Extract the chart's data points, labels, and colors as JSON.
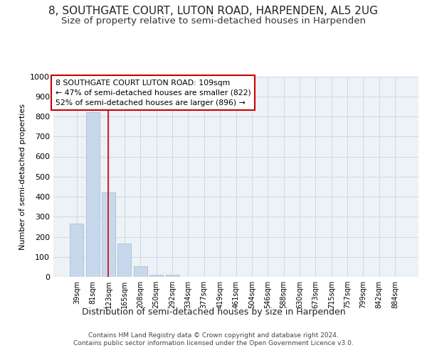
{
  "title": "8, SOUTHGATE COURT, LUTON ROAD, HARPENDEN, AL5 2UG",
  "subtitle": "Size of property relative to semi-detached houses in Harpenden",
  "xlabel": "Distribution of semi-detached houses by size in Harpenden",
  "ylabel": "Number of semi-detached properties",
  "categories": [
    "39sqm",
    "81sqm",
    "123sqm",
    "165sqm",
    "208sqm",
    "250sqm",
    "292sqm",
    "334sqm",
    "377sqm",
    "419sqm",
    "461sqm",
    "504sqm",
    "546sqm",
    "588sqm",
    "630sqm",
    "673sqm",
    "715sqm",
    "757sqm",
    "799sqm",
    "842sqm",
    "884sqm"
  ],
  "values": [
    265,
    822,
    422,
    165,
    52,
    10,
    10,
    0,
    0,
    0,
    0,
    0,
    0,
    0,
    0,
    0,
    0,
    0,
    0,
    0,
    0
  ],
  "bar_color": "#c8d8ec",
  "bar_edge_color": "#aabfcf",
  "red_line_x": 1.98,
  "annotation_text": "8 SOUTHGATE COURT LUTON ROAD: 109sqm\n← 47% of semi-detached houses are smaller (822)\n52% of semi-detached houses are larger (896) →",
  "annotation_box_color": "#ffffff",
  "annotation_box_edge_color": "#cc0000",
  "footer_text": "Contains HM Land Registry data © Crown copyright and database right 2024.\nContains public sector information licensed under the Open Government Licence v3.0.",
  "ylim": [
    0,
    1000
  ],
  "yticks": [
    0,
    100,
    200,
    300,
    400,
    500,
    600,
    700,
    800,
    900,
    1000
  ],
  "grid_color": "#ccd8e4",
  "bg_color": "#edf2f7",
  "title_fontsize": 11,
  "subtitle_fontsize": 9.5,
  "title_fontweight": "normal"
}
